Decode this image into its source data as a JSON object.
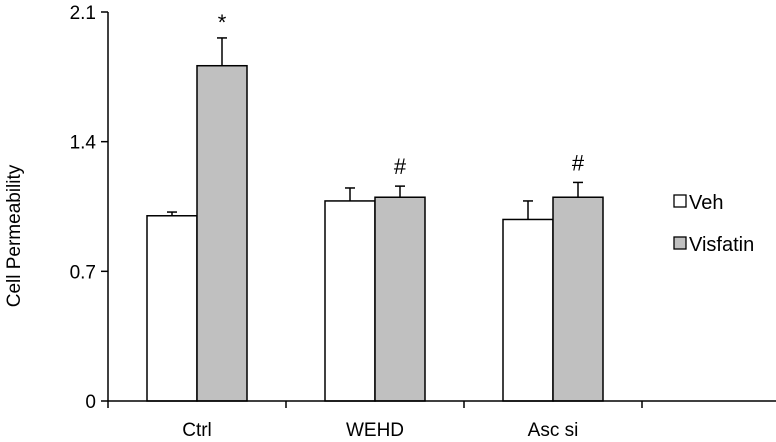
{
  "chart_data": {
    "type": "bar",
    "title": "",
    "xlabel": "",
    "ylabel": "Cell Permeability",
    "ylim": [
      0,
      2.1
    ],
    "yticks": [
      0,
      0.7,
      1.4,
      2.1
    ],
    "ytick_labels": [
      "0",
      "0.7",
      "1.4",
      "2.1"
    ],
    "categories": [
      "Ctrl",
      "WEHD",
      "Asc si"
    ],
    "series": [
      {
        "name": "Veh",
        "color": "#ffffff",
        "values": [
          1.0,
          1.08,
          0.98
        ],
        "errors": [
          0.02,
          0.07,
          0.1
        ]
      },
      {
        "name": "Visfatin",
        "color": "#c0c0c0",
        "values": [
          1.81,
          1.1,
          1.1
        ],
        "errors": [
          0.15,
          0.06,
          0.08
        ]
      }
    ],
    "annotations": [
      {
        "series": 1,
        "category": 0,
        "text": "*"
      },
      {
        "series": 1,
        "category": 1,
        "text": "#"
      },
      {
        "series": 1,
        "category": 2,
        "text": "#"
      }
    ],
    "grid": false,
    "legend_position": "right"
  }
}
